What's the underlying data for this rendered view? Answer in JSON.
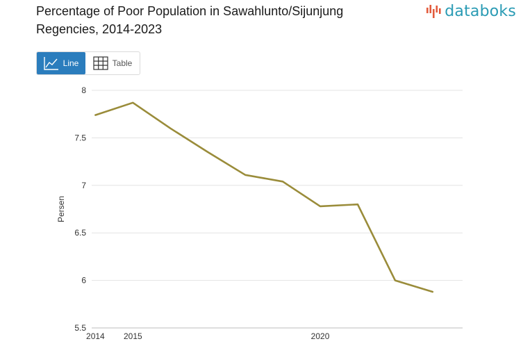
{
  "title": "Percentage of Poor Population in Sawahlunto/Sijunjung Regencies, 2014-2023",
  "brand": {
    "name": "databoks",
    "color": "#2a9bb4",
    "mark_color": "#e35b3c"
  },
  "view_toggle": {
    "line_label": "Line",
    "table_label": "Table",
    "line_icon": "line-chart-icon",
    "table_icon": "table-grid-icon",
    "active": "Line",
    "active_color": "#2b7dbd"
  },
  "chart_data": {
    "type": "line",
    "title": "Percentage of Poor Population in Sawahlunto/Sijunjung Regencies, 2014-2023",
    "xlabel": "",
    "ylabel": "Persen",
    "x": [
      2014,
      2015,
      2016,
      2017,
      2018,
      2019,
      2020,
      2021,
      2022,
      2023
    ],
    "series": [
      {
        "values": [
          7.74,
          7.87,
          7.6,
          7.35,
          7.11,
          7.04,
          6.78,
          6.8,
          6.0,
          5.88
        ],
        "color": "#9a8c3a"
      }
    ],
    "x_ticks": [
      2014,
      2015,
      2020
    ],
    "x_tick_labels": [
      "2014",
      "2015",
      "2020"
    ],
    "y_ticks": [
      5.5,
      6,
      6.5,
      7,
      7.5,
      8
    ],
    "y_tick_labels": [
      "5.5",
      "6",
      "6.5",
      "7",
      "7.5",
      "8"
    ],
    "ylim": [
      5.5,
      8
    ],
    "xlim": [
      2013.9,
      2023.8
    ],
    "grid": true,
    "legend": "none"
  }
}
